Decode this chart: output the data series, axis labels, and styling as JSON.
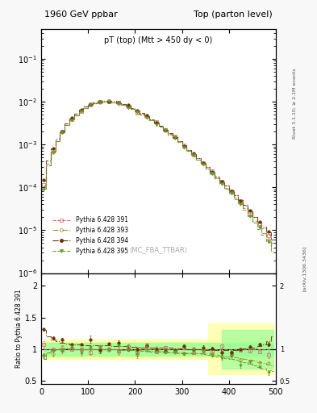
{
  "title_left": "1960 GeV ppbar",
  "title_right": "Top (parton level)",
  "plot_label": "pT (top) (Mtt > 450 dy < 0)",
  "watermark": "(MC_FBA_TTBAR)",
  "right_label_top": "Rivet 3.1.10; ≥ 2.1M events",
  "right_label_bottom": "[arXiv:1306.3436]",
  "xlabel": "",
  "ylabel_main": "",
  "ylabel_ratio": "Ratio to Pythia 6.428 391",
  "xlim": [
    0,
    500
  ],
  "ylim_main": [
    1e-06,
    0.5
  ],
  "ylim_ratio": [
    0.45,
    2.2
  ],
  "series": [
    {
      "label": "Pythia 6.428 391",
      "color": "#cc6666",
      "marker": "s",
      "linestyle": "--",
      "fillstyle": "none"
    },
    {
      "label": "Pythia 6.428 393",
      "color": "#999933",
      "marker": "o",
      "linestyle": "-.",
      "fillstyle": "none"
    },
    {
      "label": "Pythia 6.428 394",
      "color": "#663300",
      "marker": "o",
      "linestyle": "-.",
      "fillstyle": "full"
    },
    {
      "label": "Pythia 6.428 395",
      "color": "#669933",
      "marker": "v",
      "linestyle": "--",
      "fillstyle": "full"
    }
  ],
  "band_colors": [
    "#ffff99",
    "#99ff99"
  ],
  "x_bins": [
    0,
    10,
    20,
    30,
    40,
    50,
    60,
    70,
    80,
    90,
    100,
    110,
    120,
    130,
    140,
    150,
    160,
    170,
    180,
    190,
    200,
    210,
    220,
    230,
    240,
    250,
    260,
    270,
    280,
    290,
    300,
    310,
    320,
    330,
    340,
    350,
    360,
    370,
    380,
    390,
    400,
    410,
    420,
    430,
    440,
    450,
    460,
    470,
    480,
    490,
    500
  ],
  "main_values_391": [
    0.00011,
    0.00035,
    0.0007,
    0.0012,
    0.0019,
    0.0028,
    0.0038,
    0.0049,
    0.006,
    0.0072,
    0.0083,
    0.0092,
    0.0098,
    0.01,
    0.01,
    0.0098,
    0.0092,
    0.0085,
    0.0077,
    0.0069,
    0.006,
    0.0052,
    0.0045,
    0.0038,
    0.0032,
    0.0027,
    0.0022,
    0.0018,
    0.0015,
    0.0012,
    0.00095,
    0.00075,
    0.0006,
    0.00048,
    0.00038,
    0.0003,
    0.00023,
    0.00018,
    0.00014,
    0.00011,
    8.5e-05,
    6.5e-05,
    5e-05,
    3.8e-05,
    2.8e-05,
    2e-05,
    1.5e-05,
    1.1e-05,
    8e-06,
    5e-06
  ],
  "ratio_391": [
    1.0,
    1.0,
    1.0,
    1.0,
    1.0,
    1.0,
    1.0,
    1.0,
    1.0,
    1.0,
    1.0,
    1.0,
    1.0,
    1.0,
    1.0,
    1.0,
    1.0,
    1.0,
    1.0,
    1.0,
    1.0,
    1.0,
    1.0,
    1.0,
    1.0,
    1.0,
    1.0,
    1.0,
    1.0,
    1.0,
    1.0,
    1.0,
    1.0,
    1.0,
    1.0,
    1.0,
    1.0,
    1.0,
    1.0,
    1.0,
    1.0,
    1.0,
    1.0,
    1.0,
    1.0,
    1.0,
    1.0,
    1.0,
    1.0,
    1.0
  ],
  "ratio_393": [
    0.85,
    0.95,
    0.98,
    1.0,
    1.01,
    1.01,
    1.01,
    1.0,
    1.0,
    1.0,
    1.0,
    1.0,
    1.0,
    1.0,
    1.0,
    1.0,
    0.99,
    0.99,
    0.99,
    0.98,
    0.98,
    0.98,
    0.97,
    0.97,
    0.97,
    0.97,
    0.96,
    0.96,
    0.96,
    0.95,
    0.95,
    0.95,
    0.94,
    0.94,
    0.93,
    0.93,
    0.92,
    0.91,
    0.9,
    0.89,
    0.88,
    0.87,
    0.86,
    0.85,
    0.83,
    0.82,
    0.8,
    0.78,
    0.76,
    0.74
  ],
  "ratio_394": [
    1.3,
    1.2,
    1.15,
    1.12,
    1.1,
    1.09,
    1.08,
    1.07,
    1.07,
    1.06,
    1.06,
    1.06,
    1.06,
    1.06,
    1.06,
    1.05,
    1.05,
    1.05,
    1.05,
    1.04,
    1.04,
    1.03,
    1.03,
    1.03,
    1.03,
    1.02,
    1.02,
    1.02,
    1.01,
    1.01,
    1.01,
    1.0,
    1.0,
    1.0,
    0.99,
    0.99,
    0.99,
    0.99,
    0.99,
    0.99,
    0.99,
    0.99,
    1.0,
    1.01,
    1.02,
    1.03,
    1.05,
    1.08,
    1.12,
    1.2
  ],
  "ratio_395": [
    0.85,
    0.95,
    0.98,
    1.0,
    1.01,
    1.01,
    1.01,
    1.0,
    1.0,
    1.0,
    1.0,
    1.0,
    1.0,
    1.0,
    1.0,
    1.0,
    0.99,
    0.99,
    0.98,
    0.98,
    0.97,
    0.97,
    0.97,
    0.96,
    0.96,
    0.96,
    0.95,
    0.95,
    0.95,
    0.94,
    0.94,
    0.94,
    0.93,
    0.93,
    0.92,
    0.91,
    0.9,
    0.89,
    0.88,
    0.86,
    0.84,
    0.83,
    0.81,
    0.79,
    0.77,
    0.75,
    0.72,
    0.7,
    0.67,
    0.65
  ],
  "bg_color": "#f8f8f8",
  "panel_bg": "#ffffff"
}
